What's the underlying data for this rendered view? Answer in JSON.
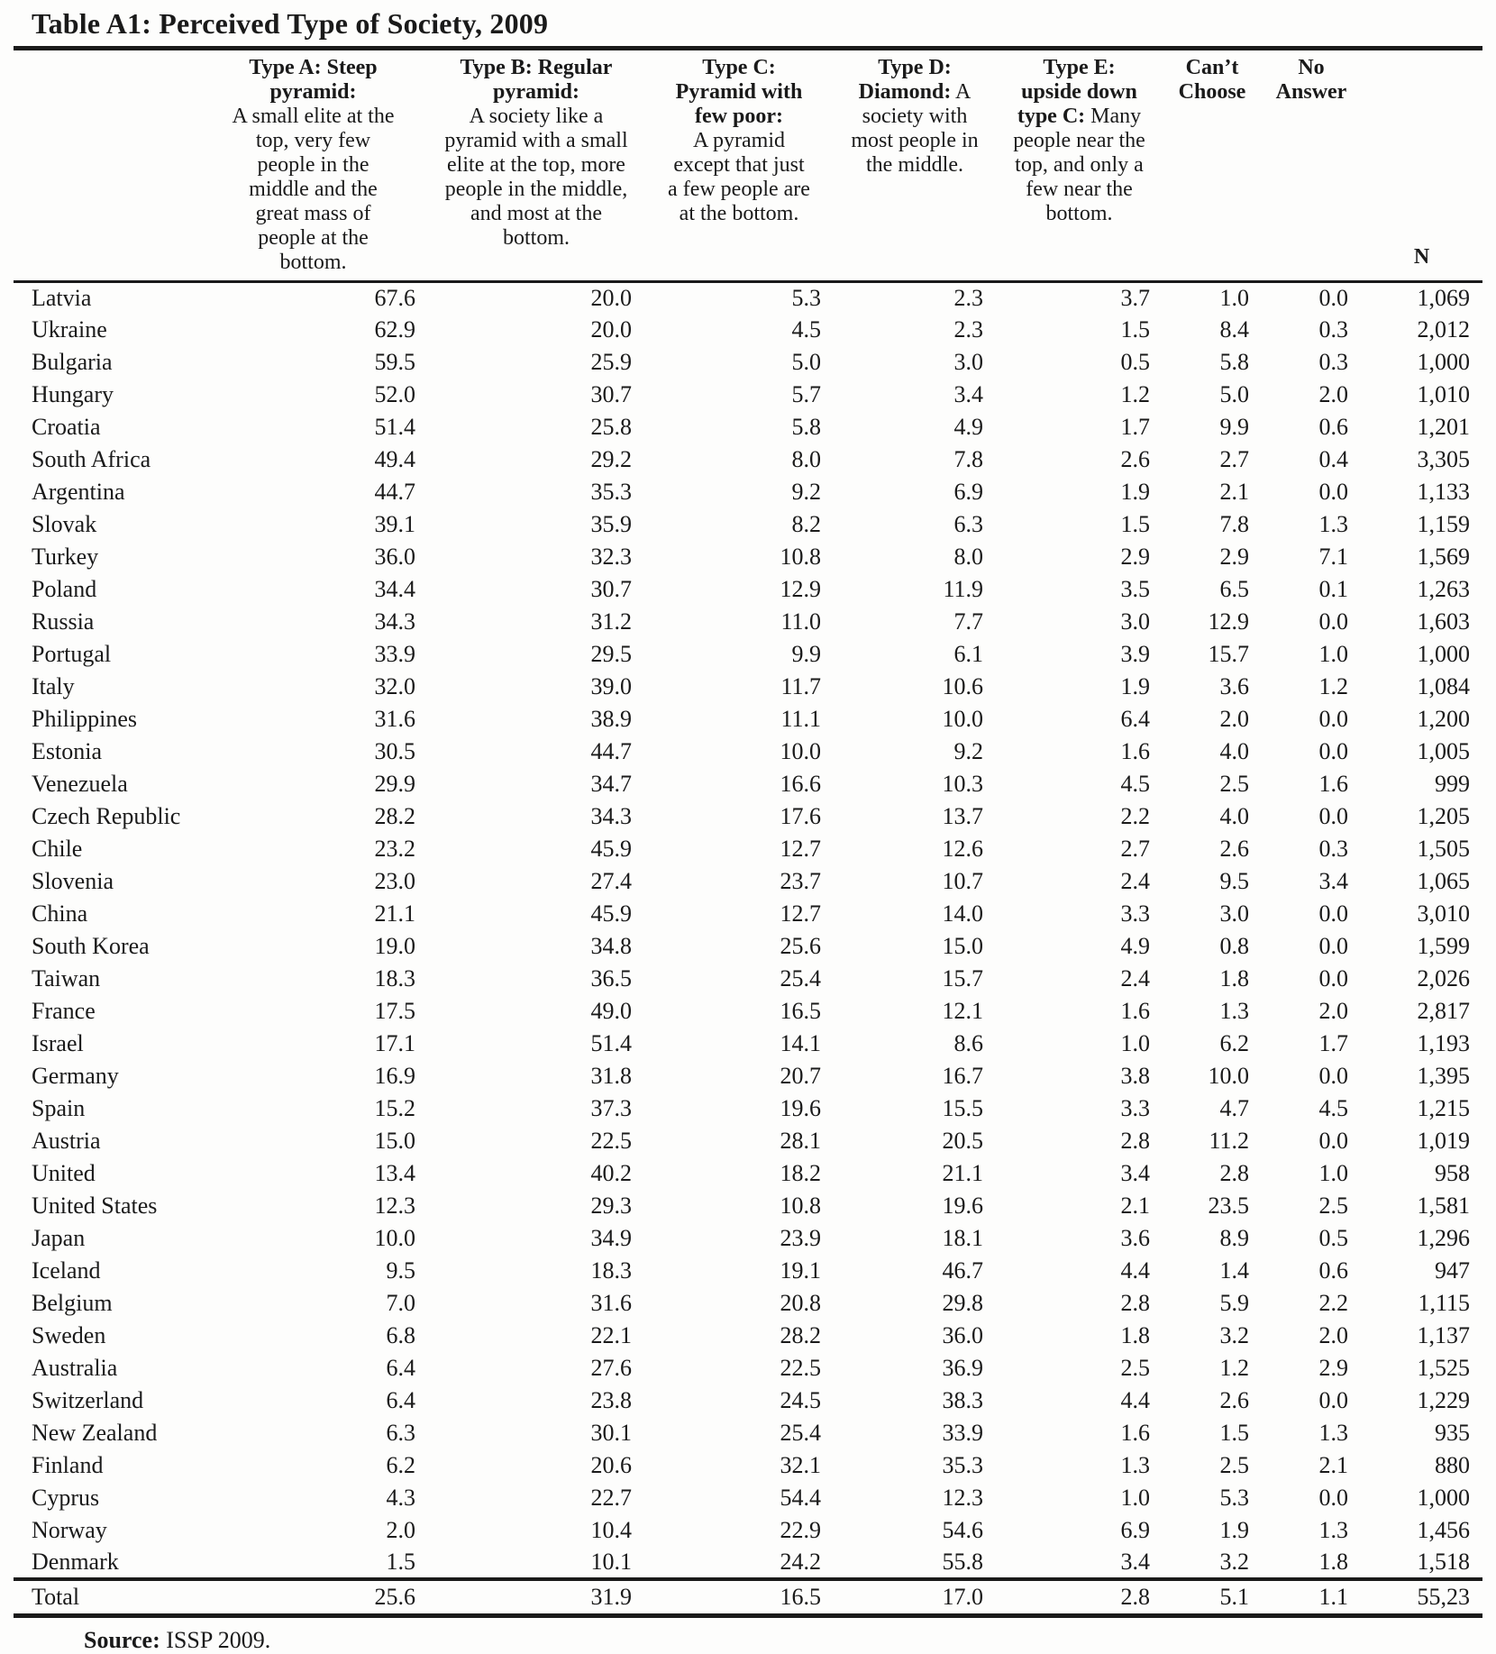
{
  "title": "Table A1: Perceived Type of Society, 2009",
  "colors": {
    "ink": "#1a1a1a",
    "paper": "#fdfdfc"
  },
  "table": {
    "columns": [
      {
        "label": "",
        "desc": ""
      },
      {
        "label": "Type A: Steep pyramid:",
        "desc": "A small elite at the top, very few people in the middle and the great mass of people at the bottom."
      },
      {
        "label": "Type B: Regular pyramid:",
        "desc": "A society like a pyramid with a small elite at the top, more people in the middle, and most at the bottom."
      },
      {
        "label": "Type C: Pyramid with few poor:",
        "desc": "A pyramid except that just a few people are at the bottom."
      },
      {
        "label": "Type D: Diamond:",
        "desc": "A society with most people in the middle."
      },
      {
        "label": "Type E: upside down type C:",
        "desc": "Many people near the top, and only a few near the bottom."
      },
      {
        "label": "Can’t Choose",
        "desc": ""
      },
      {
        "label": "No Answer",
        "desc": ""
      },
      {
        "label": "N",
        "desc": ""
      }
    ],
    "rows": [
      [
        "Latvia",
        "67.6",
        "20.0",
        "5.3",
        "2.3",
        "3.7",
        "1.0",
        "0.0",
        "1,069"
      ],
      [
        "Ukraine",
        "62.9",
        "20.0",
        "4.5",
        "2.3",
        "1.5",
        "8.4",
        "0.3",
        "2,012"
      ],
      [
        "Bulgaria",
        "59.5",
        "25.9",
        "5.0",
        "3.0",
        "0.5",
        "5.8",
        "0.3",
        "1,000"
      ],
      [
        "Hungary",
        "52.0",
        "30.7",
        "5.7",
        "3.4",
        "1.2",
        "5.0",
        "2.0",
        "1,010"
      ],
      [
        "Croatia",
        "51.4",
        "25.8",
        "5.8",
        "4.9",
        "1.7",
        "9.9",
        "0.6",
        "1,201"
      ],
      [
        "South Africa",
        "49.4",
        "29.2",
        "8.0",
        "7.8",
        "2.6",
        "2.7",
        "0.4",
        "3,305"
      ],
      [
        "Argentina",
        "44.7",
        "35.3",
        "9.2",
        "6.9",
        "1.9",
        "2.1",
        "0.0",
        "1,133"
      ],
      [
        "Slovak",
        "39.1",
        "35.9",
        "8.2",
        "6.3",
        "1.5",
        "7.8",
        "1.3",
        "1,159"
      ],
      [
        "Turkey",
        "36.0",
        "32.3",
        "10.8",
        "8.0",
        "2.9",
        "2.9",
        "7.1",
        "1,569"
      ],
      [
        "Poland",
        "34.4",
        "30.7",
        "12.9",
        "11.9",
        "3.5",
        "6.5",
        "0.1",
        "1,263"
      ],
      [
        "Russia",
        "34.3",
        "31.2",
        "11.0",
        "7.7",
        "3.0",
        "12.9",
        "0.0",
        "1,603"
      ],
      [
        "Portugal",
        "33.9",
        "29.5",
        "9.9",
        "6.1",
        "3.9",
        "15.7",
        "1.0",
        "1,000"
      ],
      [
        "Italy",
        "32.0",
        "39.0",
        "11.7",
        "10.6",
        "1.9",
        "3.6",
        "1.2",
        "1,084"
      ],
      [
        "Philippines",
        "31.6",
        "38.9",
        "11.1",
        "10.0",
        "6.4",
        "2.0",
        "0.0",
        "1,200"
      ],
      [
        "Estonia",
        "30.5",
        "44.7",
        "10.0",
        "9.2",
        "1.6",
        "4.0",
        "0.0",
        "1,005"
      ],
      [
        "Venezuela",
        "29.9",
        "34.7",
        "16.6",
        "10.3",
        "4.5",
        "2.5",
        "1.6",
        "999"
      ],
      [
        "Czech Republic",
        "28.2",
        "34.3",
        "17.6",
        "13.7",
        "2.2",
        "4.0",
        "0.0",
        "1,205"
      ],
      [
        "Chile",
        "23.2",
        "45.9",
        "12.7",
        "12.6",
        "2.7",
        "2.6",
        "0.3",
        "1,505"
      ],
      [
        "Slovenia",
        "23.0",
        "27.4",
        "23.7",
        "10.7",
        "2.4",
        "9.5",
        "3.4",
        "1,065"
      ],
      [
        "China",
        "21.1",
        "45.9",
        "12.7",
        "14.0",
        "3.3",
        "3.0",
        "0.0",
        "3,010"
      ],
      [
        "South Korea",
        "19.0",
        "34.8",
        "25.6",
        "15.0",
        "4.9",
        "0.8",
        "0.0",
        "1,599"
      ],
      [
        "Taiwan",
        "18.3",
        "36.5",
        "25.4",
        "15.7",
        "2.4",
        "1.8",
        "0.0",
        "2,026"
      ],
      [
        "France",
        "17.5",
        "49.0",
        "16.5",
        "12.1",
        "1.6",
        "1.3",
        "2.0",
        "2,817"
      ],
      [
        "Israel",
        "17.1",
        "51.4",
        "14.1",
        "8.6",
        "1.0",
        "6.2",
        "1.7",
        "1,193"
      ],
      [
        "Germany",
        "16.9",
        "31.8",
        "20.7",
        "16.7",
        "3.8",
        "10.0",
        "0.0",
        "1,395"
      ],
      [
        "Spain",
        "15.2",
        "37.3",
        "19.6",
        "15.5",
        "3.3",
        "4.7",
        "4.5",
        "1,215"
      ],
      [
        "Austria",
        "15.0",
        "22.5",
        "28.1",
        "20.5",
        "2.8",
        "11.2",
        "0.0",
        "1,019"
      ],
      [
        "United",
        "13.4",
        "40.2",
        "18.2",
        "21.1",
        "3.4",
        "2.8",
        "1.0",
        "958"
      ],
      [
        "United States",
        "12.3",
        "29.3",
        "10.8",
        "19.6",
        "2.1",
        "23.5",
        "2.5",
        "1,581"
      ],
      [
        "Japan",
        "10.0",
        "34.9",
        "23.9",
        "18.1",
        "3.6",
        "8.9",
        "0.5",
        "1,296"
      ],
      [
        "Iceland",
        "9.5",
        "18.3",
        "19.1",
        "46.7",
        "4.4",
        "1.4",
        "0.6",
        "947"
      ],
      [
        "Belgium",
        "7.0",
        "31.6",
        "20.8",
        "29.8",
        "2.8",
        "5.9",
        "2.2",
        "1,115"
      ],
      [
        "Sweden",
        "6.8",
        "22.1",
        "28.2",
        "36.0",
        "1.8",
        "3.2",
        "2.0",
        "1,137"
      ],
      [
        "Australia",
        "6.4",
        "27.6",
        "22.5",
        "36.9",
        "2.5",
        "1.2",
        "2.9",
        "1,525"
      ],
      [
        "Switzerland",
        "6.4",
        "23.8",
        "24.5",
        "38.3",
        "4.4",
        "2.6",
        "0.0",
        "1,229"
      ],
      [
        "New Zealand",
        "6.3",
        "30.1",
        "25.4",
        "33.9",
        "1.6",
        "1.5",
        "1.3",
        "935"
      ],
      [
        "Finland",
        "6.2",
        "20.6",
        "32.1",
        "35.3",
        "1.3",
        "2.5",
        "2.1",
        "880"
      ],
      [
        "Cyprus",
        "4.3",
        "22.7",
        "54.4",
        "12.3",
        "1.0",
        "5.3",
        "0.0",
        "1,000"
      ],
      [
        "Norway",
        "2.0",
        "10.4",
        "22.9",
        "54.6",
        "6.9",
        "1.9",
        "1.3",
        "1,456"
      ],
      [
        "Denmark",
        "1.5",
        "10.1",
        "24.2",
        "55.8",
        "3.4",
        "3.2",
        "1.8",
        "1,518"
      ]
    ],
    "total": [
      "Total",
      "25.6",
      "31.9",
      "16.5",
      "17.0",
      "2.8",
      "5.1",
      "1.1",
      "55,23"
    ]
  },
  "source": {
    "label": "Source:",
    "text": " ISSP 2009."
  }
}
